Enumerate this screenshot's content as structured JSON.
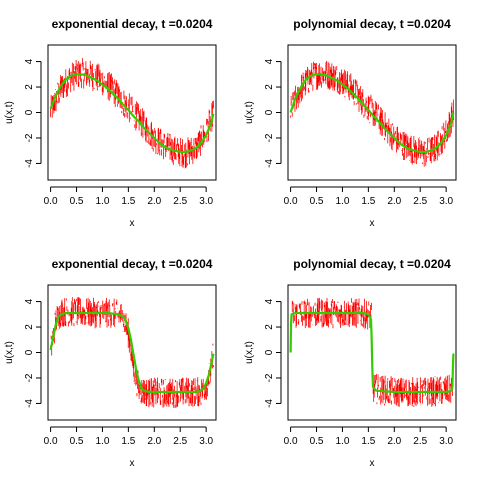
{
  "chart_data": [
    {
      "type": "line",
      "title": "exponential decay, t =0.0204",
      "xlabel": "x",
      "ylabel": "u(x,t)",
      "xlim": [
        -0.05,
        3.19
      ],
      "ylim": [
        -5.3,
        5.3
      ],
      "xticks": [
        "0.0",
        "0.5",
        "1.0",
        "1.5",
        "2.0",
        "2.5",
        "3.0"
      ],
      "yticks": [
        "4",
        "2",
        "0",
        "-2",
        "-4"
      ],
      "grid": false,
      "series": [
        {
          "color": "#ff0000",
          "style": "noisy-vertical-lines",
          "x": [
            0.0,
            0.2,
            0.4,
            0.6,
            0.8,
            1.0,
            1.2,
            1.4,
            1.6,
            1.8,
            2.0,
            2.2,
            2.4,
            2.6,
            2.8,
            3.0,
            3.14
          ],
          "values": [
            0.1,
            1.9,
            2.8,
            3.1,
            2.9,
            2.5,
            1.8,
            0.8,
            0.0,
            -1.0,
            -2.0,
            -2.6,
            -3.0,
            -3.2,
            -2.8,
            -1.6,
            0.0
          ]
        },
        {
          "color": "#33cc00",
          "style": "smooth-line",
          "x": [
            0.0,
            0.1,
            0.2,
            0.3,
            0.4,
            0.5,
            0.6,
            0.7,
            0.8,
            0.9,
            1.0,
            1.1,
            1.2,
            1.3,
            1.4,
            1.5,
            1.6,
            1.7,
            1.8,
            1.9,
            2.0,
            2.1,
            2.2,
            2.3,
            2.4,
            2.5,
            2.6,
            2.7,
            2.8,
            2.9,
            3.0,
            3.1,
            3.14
          ],
          "values": [
            0.3,
            1.3,
            2.1,
            2.6,
            2.9,
            3.0,
            3.0,
            2.9,
            2.7,
            2.5,
            2.2,
            1.9,
            1.5,
            1.1,
            0.6,
            0.2,
            -0.3,
            -0.7,
            -1.2,
            -1.6,
            -2.0,
            -2.4,
            -2.7,
            -2.9,
            -3.0,
            -3.1,
            -3.1,
            -3.0,
            -2.8,
            -2.4,
            -1.8,
            -0.8,
            -0.1
          ]
        }
      ]
    },
    {
      "type": "line",
      "title": "polynomial decay, t =0.0204",
      "xlabel": "x",
      "ylabel": "u(x,t)",
      "xlim": [
        -0.05,
        3.19
      ],
      "ylim": [
        -5.3,
        5.3
      ],
      "xticks": [
        "0.0",
        "0.5",
        "1.0",
        "1.5",
        "2.0",
        "2.5",
        "3.0"
      ],
      "yticks": [
        "4",
        "2",
        "0",
        "-2",
        "-4"
      ],
      "grid": false,
      "series": [
        {
          "color": "#ff0000",
          "style": "noisy-vertical-lines",
          "x": [
            0.0,
            0.2,
            0.4,
            0.6,
            0.8,
            1.0,
            1.2,
            1.4,
            1.6,
            1.8,
            2.0,
            2.2,
            2.4,
            2.6,
            2.8,
            3.0,
            3.14
          ],
          "values": [
            0.1,
            1.9,
            2.8,
            3.1,
            2.9,
            2.5,
            1.8,
            0.8,
            0.0,
            -1.0,
            -2.0,
            -2.6,
            -3.0,
            -3.2,
            -2.8,
            -1.6,
            0.0
          ]
        },
        {
          "color": "#33cc00",
          "style": "smooth-line",
          "x": [
            0.0,
            0.1,
            0.2,
            0.3,
            0.4,
            0.5,
            0.6,
            0.7,
            0.8,
            0.9,
            1.0,
            1.1,
            1.2,
            1.3,
            1.4,
            1.5,
            1.6,
            1.7,
            1.8,
            1.9,
            2.0,
            2.1,
            2.2,
            2.3,
            2.4,
            2.5,
            2.6,
            2.7,
            2.8,
            2.9,
            3.0,
            3.1,
            3.14
          ],
          "values": [
            0.0,
            1.2,
            2.0,
            2.6,
            2.9,
            3.0,
            3.0,
            2.9,
            2.7,
            2.5,
            2.2,
            1.9,
            1.5,
            1.1,
            0.6,
            0.2,
            -0.3,
            -0.7,
            -1.2,
            -1.6,
            -2.0,
            -2.4,
            -2.7,
            -2.9,
            -3.0,
            -3.1,
            -3.1,
            -3.0,
            -2.8,
            -2.4,
            -1.8,
            -0.8,
            0.0
          ]
        }
      ]
    },
    {
      "type": "line",
      "title": "exponential decay, t =0.0204",
      "xlabel": "x",
      "ylabel": "u(x,t)",
      "xlim": [
        -0.05,
        3.19
      ],
      "ylim": [
        -5.3,
        5.3
      ],
      "xticks": [
        "0.0",
        "0.5",
        "1.0",
        "1.5",
        "2.0",
        "2.5",
        "3.0"
      ],
      "yticks": [
        "4",
        "2",
        "0",
        "-2",
        "-4"
      ],
      "grid": false,
      "series": [
        {
          "color": "#ff0000",
          "style": "noisy-vertical-lines",
          "x": [
            0.0,
            0.1,
            0.2,
            0.4,
            0.8,
            1.2,
            1.4,
            1.5,
            1.6,
            1.7,
            1.8,
            2.2,
            2.6,
            2.9,
            3.0,
            3.1,
            3.14
          ],
          "values": [
            0.0,
            2.5,
            3.2,
            3.2,
            3.1,
            3.1,
            2.8,
            1.5,
            -1.2,
            -2.8,
            -3.1,
            -3.2,
            -3.1,
            -3.1,
            -2.6,
            -1.4,
            0.0
          ]
        },
        {
          "color": "#33cc00",
          "style": "smooth-line",
          "x": [
            0.0,
            0.05,
            0.1,
            0.15,
            0.2,
            0.3,
            0.5,
            0.8,
            1.1,
            1.3,
            1.4,
            1.45,
            1.5,
            1.55,
            1.6,
            1.65,
            1.7,
            1.75,
            1.8,
            1.9,
            2.2,
            2.5,
            2.8,
            2.9,
            2.95,
            3.0,
            3.05,
            3.1,
            3.14
          ],
          "values": [
            0.2,
            1.2,
            2.2,
            2.8,
            3.0,
            3.1,
            3.1,
            3.1,
            3.1,
            3.0,
            2.8,
            2.5,
            1.9,
            1.0,
            -0.2,
            -1.3,
            -2.2,
            -2.8,
            -3.0,
            -3.1,
            -3.1,
            -3.1,
            -3.1,
            -3.0,
            -2.8,
            -2.4,
            -1.8,
            -0.9,
            -0.1
          ]
        }
      ]
    },
    {
      "type": "line",
      "title": "polynomial decay, t =0.0204",
      "xlabel": "x",
      "ylabel": "u(x,t)",
      "xlim": [
        -0.05,
        3.19
      ],
      "ylim": [
        -5.3,
        5.3
      ],
      "xticks": [
        "0.0",
        "0.5",
        "1.0",
        "1.5",
        "2.0",
        "2.5",
        "3.0"
      ],
      "yticks": [
        "4",
        "2",
        "0",
        "-2",
        "-4"
      ],
      "grid": false,
      "series": [
        {
          "color": "#ff0000",
          "style": "noisy-vertical-lines",
          "x": [
            0.0,
            0.02,
            0.4,
            0.8,
            1.2,
            1.5,
            1.56,
            1.58,
            2.0,
            2.6,
            3.0,
            3.12,
            3.14
          ],
          "values": [
            0.0,
            3.0,
            3.1,
            3.1,
            3.1,
            3.0,
            2.8,
            -2.8,
            -3.1,
            -3.1,
            -3.0,
            -2.9,
            0.0
          ]
        },
        {
          "color": "#33cc00",
          "style": "smooth-line",
          "x": [
            0.0,
            0.01,
            0.02,
            0.1,
            0.5,
            1.0,
            1.4,
            1.5,
            1.55,
            1.565,
            1.575,
            1.59,
            1.65,
            2.0,
            2.5,
            3.0,
            3.1,
            3.12,
            3.13,
            3.14
          ],
          "values": [
            0.0,
            2.4,
            3.0,
            3.1,
            3.1,
            3.1,
            3.1,
            3.0,
            2.6,
            1.0,
            -1.2,
            -2.7,
            -3.0,
            -3.1,
            -3.1,
            -3.1,
            -3.0,
            -2.7,
            -1.2,
            -0.1
          ]
        }
      ]
    }
  ]
}
